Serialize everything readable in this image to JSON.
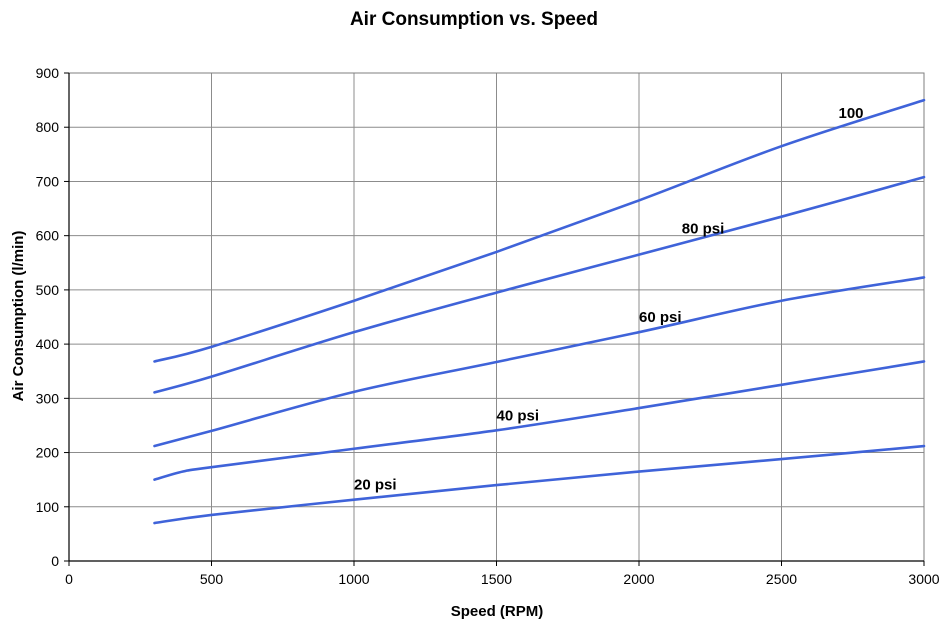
{
  "chart_data": {
    "type": "line",
    "title": "Air Consumption vs. Speed",
    "xlabel": "Speed (RPM)",
    "ylabel": "Air Consumption (l/min)",
    "xlim": [
      0,
      3000
    ],
    "ylim": [
      0,
      900
    ],
    "xticks": [
      0,
      500,
      1000,
      1500,
      2000,
      2500,
      3000
    ],
    "yticks": [
      0,
      100,
      200,
      300,
      400,
      500,
      600,
      700,
      800,
      900
    ],
    "grid": true,
    "line_color": "#3f63d9",
    "series": [
      {
        "name": "20 psi",
        "label": "20 psi",
        "x": [
          300,
          500,
          1000,
          1500,
          2000,
          2500,
          3000
        ],
        "y": [
          70,
          85,
          113,
          140,
          165,
          188,
          212
        ]
      },
      {
        "name": "40 psi",
        "label": "40 psi",
        "x": [
          300,
          400,
          500,
          1000,
          1500,
          2000,
          2500,
          3000
        ],
        "y": [
          150,
          165,
          173,
          207,
          241,
          282,
          325,
          368
        ]
      },
      {
        "name": "60 psi",
        "label": "60 psi",
        "x": [
          300,
          500,
          1000,
          1500,
          2000,
          2500,
          3000
        ],
        "y": [
          212,
          240,
          312,
          367,
          422,
          480,
          523
        ]
      },
      {
        "name": "80 psi",
        "label": "80 psi",
        "x": [
          300,
          500,
          1000,
          1500,
          2000,
          2500,
          3000
        ],
        "y": [
          311,
          340,
          422,
          495,
          565,
          635,
          708
        ]
      },
      {
        "name": "100",
        "label": "100",
        "x": [
          300,
          500,
          1000,
          1500,
          2000,
          2500,
          3000
        ],
        "y": [
          368,
          395,
          480,
          570,
          665,
          765,
          850
        ]
      }
    ]
  }
}
